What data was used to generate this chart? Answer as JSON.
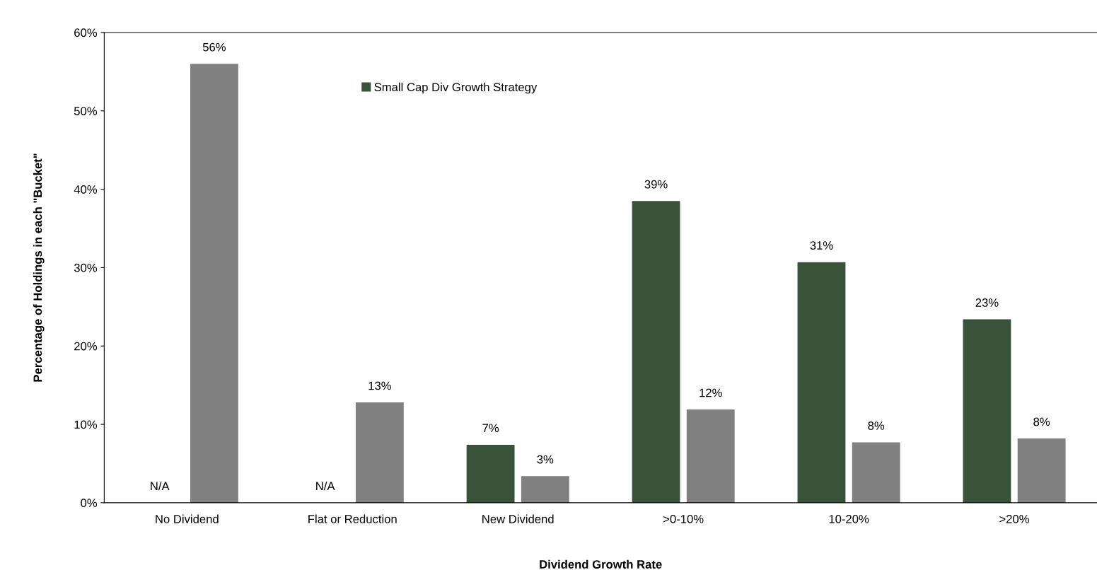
{
  "chart_data": {
    "type": "bar",
    "xlabel": "Dividend Growth Rate",
    "ylabel": "Percentage of Holdings in each \"Bucket\"",
    "categories": [
      "No Dividend",
      "Flat or Reduction",
      "New Dividend",
      ">0-10%",
      "10-20%",
      ">20%"
    ],
    "series": [
      {
        "name": "Small Cap Div Growth Strategy",
        "color": "#38533a",
        "values": [
          null,
          null,
          7.4,
          38.5,
          30.7,
          23.4
        ],
        "value_labels": [
          "N/A",
          "N/A",
          "7%",
          "39%",
          "31%",
          "23%"
        ]
      },
      {
        "color": "#808080",
        "values": [
          56,
          12.8,
          3.4,
          11.9,
          7.7,
          8.2
        ],
        "value_labels": [
          "56%",
          "13%",
          "3%",
          "12%",
          "8%",
          "8%"
        ]
      }
    ],
    "ylim": [
      0,
      60
    ],
    "yticks": [
      {
        "value": 0,
        "label": "0%"
      },
      {
        "value": 10,
        "label": "10%"
      },
      {
        "value": 20,
        "label": "20%"
      },
      {
        "value": 30,
        "label": "30%"
      },
      {
        "value": 40,
        "label": "40%"
      },
      {
        "value": 50,
        "label": "50%"
      },
      {
        "value": 60,
        "label": "60%"
      }
    ],
    "grid": false,
    "legend": "top"
  }
}
